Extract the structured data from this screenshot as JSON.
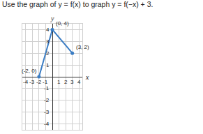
{
  "chart_data": {
    "type": "line",
    "title": "Use the graph of y = f(x) to graph y = f(−x) + 3.",
    "x_label": "x",
    "y_label": "y",
    "x": [
      -2,
      0,
      3
    ],
    "values": [
      0,
      4,
      2
    ],
    "point_labels": [
      "(-2, 0)",
      "(0, 4)",
      "(3, 2)"
    ],
    "color": "#3b7dc4",
    "marker": "circle",
    "xlim": [
      -4.5,
      4.5
    ],
    "ylim": [
      -4.5,
      4.5
    ],
    "xticks": [
      -4,
      -3,
      -2,
      -1,
      1,
      2,
      3,
      4
    ],
    "yticks": [
      -4,
      -3,
      -2,
      -1,
      1,
      2,
      3,
      4
    ],
    "grid": true
  }
}
